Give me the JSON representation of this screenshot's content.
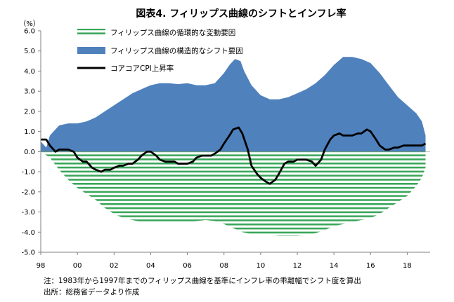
{
  "chart_data": {
    "type": "area",
    "title": "図表4. フィリップス曲線のシフトとインフレ率",
    "ylabel": "（%）",
    "xlabel": "",
    "ylim": [
      -5.0,
      6.0
    ],
    "yticks": [
      6.0,
      5.0,
      4.0,
      3.0,
      2.0,
      1.0,
      0.0,
      -1.0,
      -2.0,
      -3.0,
      -4.0,
      -5.0
    ],
    "ytick_labels": [
      "6.0",
      "5.0",
      "4.0",
      "3.0",
      "2.0",
      "1.0",
      "0.0",
      "-1.0",
      "-2.0",
      "-3.0",
      "-4.0",
      "-5.0"
    ],
    "xlim": [
      1998.0,
      2019.25
    ],
    "xticks": [
      1998,
      2000,
      2002,
      2004,
      2006,
      2008,
      2010,
      2012,
      2014,
      2016,
      2018
    ],
    "xtick_labels": [
      "98",
      "00",
      "02",
      "04",
      "06",
      "08",
      "10",
      "12",
      "14",
      "16",
      "18"
    ],
    "grid": false,
    "legend_position": "top-left",
    "series": [
      {
        "name": "フィリップス曲線の循環的な変動要因",
        "style": "horizontal-stripes",
        "color": "#3aa65a",
        "x": [
          1998.0,
          1998.5,
          1999.0,
          1999.5,
          2000.0,
          2000.5,
          2001.0,
          2001.5,
          2002.0,
          2002.5,
          2003.0,
          2003.5,
          2004.0,
          2004.5,
          2005.0,
          2005.5,
          2006.0,
          2006.5,
          2007.0,
          2007.5,
          2008.0,
          2008.5,
          2009.0,
          2009.5,
          2010.0,
          2010.5,
          2011.0,
          2011.5,
          2012.0,
          2012.5,
          2013.0,
          2013.5,
          2014.0,
          2014.5,
          2015.0,
          2015.5,
          2016.0,
          2016.5,
          2017.0,
          2017.5,
          2018.0,
          2018.5,
          2018.8,
          2019.0
        ],
        "values": [
          0.0,
          -0.3,
          -0.9,
          -1.4,
          -1.8,
          -2.1,
          -2.4,
          -2.8,
          -3.1,
          -3.3,
          -3.4,
          -3.5,
          -3.5,
          -3.5,
          -3.5,
          -3.5,
          -3.5,
          -3.45,
          -3.4,
          -3.45,
          -3.6,
          -3.8,
          -4.0,
          -4.1,
          -4.1,
          -4.15,
          -4.2,
          -4.2,
          -4.2,
          -4.15,
          -4.05,
          -3.9,
          -3.7,
          -3.6,
          -3.5,
          -3.4,
          -3.3,
          -3.1,
          -2.8,
          -2.5,
          -2.2,
          -1.7,
          -1.3,
          -0.8
        ]
      },
      {
        "name": "フィリップス曲線の構造的なシフト要因",
        "style": "filled-area",
        "color": "#4f81bd",
        "x": [
          1998.0,
          1998.3,
          1998.5,
          1999.0,
          1999.5,
          2000.0,
          2000.5,
          2001.0,
          2001.5,
          2002.0,
          2002.5,
          2003.0,
          2003.5,
          2004.0,
          2004.5,
          2005.0,
          2005.5,
          2006.0,
          2006.5,
          2007.0,
          2007.5,
          2008.0,
          2008.3,
          2008.6,
          2008.9,
          2009.1,
          2009.5,
          2010.0,
          2010.5,
          2011.0,
          2011.5,
          2012.0,
          2012.5,
          2013.0,
          2013.5,
          2014.0,
          2014.5,
          2015.0,
          2015.5,
          2016.0,
          2016.5,
          2017.0,
          2017.5,
          2018.0,
          2018.5,
          2018.8,
          2019.0
        ],
        "values": [
          0.5,
          0.2,
          0.8,
          1.3,
          1.4,
          1.4,
          1.5,
          1.7,
          2.0,
          2.3,
          2.6,
          2.9,
          3.1,
          3.3,
          3.4,
          3.4,
          3.35,
          3.4,
          3.3,
          3.3,
          3.4,
          3.9,
          4.3,
          4.6,
          4.5,
          4.0,
          3.3,
          2.8,
          2.6,
          2.6,
          2.7,
          2.9,
          3.1,
          3.4,
          3.8,
          4.3,
          4.7,
          4.7,
          4.6,
          4.4,
          3.9,
          3.3,
          2.7,
          2.3,
          1.9,
          1.5,
          0.8
        ]
      },
      {
        "name": "コアコアCPI上昇率",
        "style": "line",
        "color": "#000000",
        "x": [
          1998.0,
          1998.3,
          1998.5,
          1998.8,
          1999.0,
          1999.3,
          1999.5,
          1999.8,
          2000.0,
          2000.3,
          2000.5,
          2000.8,
          2001.0,
          2001.3,
          2001.5,
          2001.8,
          2002.0,
          2002.3,
          2002.5,
          2002.8,
          2003.0,
          2003.3,
          2003.5,
          2003.8,
          2004.0,
          2004.3,
          2004.5,
          2004.8,
          2005.0,
          2005.3,
          2005.5,
          2005.8,
          2006.0,
          2006.3,
          2006.5,
          2006.8,
          2007.0,
          2007.3,
          2007.5,
          2007.8,
          2008.0,
          2008.3,
          2008.5,
          2008.8,
          2009.0,
          2009.3,
          2009.5,
          2009.8,
          2010.0,
          2010.3,
          2010.5,
          2010.8,
          2011.0,
          2011.3,
          2011.5,
          2011.8,
          2012.0,
          2012.3,
          2012.5,
          2012.8,
          2013.0,
          2013.3,
          2013.5,
          2013.8,
          2014.0,
          2014.3,
          2014.5,
          2014.8,
          2015.0,
          2015.3,
          2015.5,
          2015.8,
          2016.0,
          2016.3,
          2016.5,
          2016.8,
          2017.0,
          2017.3,
          2017.5,
          2017.8,
          2018.0,
          2018.3,
          2018.5,
          2018.8,
          2019.0
        ],
        "values": [
          0.6,
          0.6,
          0.3,
          0.0,
          0.1,
          0.1,
          0.1,
          0.0,
          -0.3,
          -0.5,
          -0.5,
          -0.8,
          -0.9,
          -1.0,
          -0.9,
          -0.9,
          -0.8,
          -0.7,
          -0.7,
          -0.6,
          -0.6,
          -0.4,
          -0.2,
          0.0,
          0.0,
          -0.2,
          -0.4,
          -0.5,
          -0.5,
          -0.5,
          -0.6,
          -0.6,
          -0.6,
          -0.5,
          -0.3,
          -0.2,
          -0.2,
          -0.2,
          -0.1,
          0.1,
          0.4,
          0.8,
          1.1,
          1.2,
          0.9,
          0.1,
          -0.7,
          -1.1,
          -1.3,
          -1.5,
          -1.6,
          -1.4,
          -1.1,
          -0.6,
          -0.5,
          -0.5,
          -0.4,
          -0.4,
          -0.4,
          -0.5,
          -0.7,
          -0.4,
          0.1,
          0.6,
          0.8,
          0.9,
          0.8,
          0.8,
          0.8,
          0.9,
          0.9,
          1.1,
          1.0,
          0.6,
          0.3,
          0.1,
          0.1,
          0.2,
          0.2,
          0.3,
          0.3,
          0.3,
          0.3,
          0.3,
          0.4
        ]
      }
    ]
  },
  "notes": [
    "注：1983年から1997年までのフィリップス曲線を基準にインフレ率の乖離幅でシフト度を算出",
    "出所：総務省データより作成"
  ]
}
